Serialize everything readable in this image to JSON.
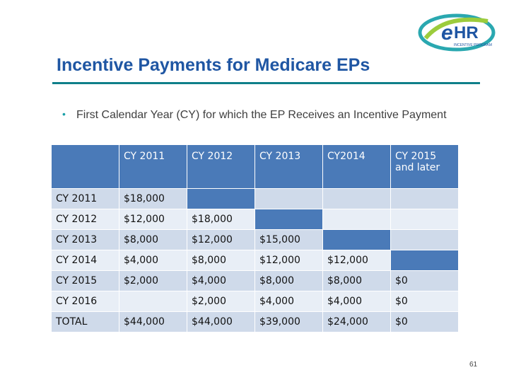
{
  "logo": {
    "text": "eHR",
    "subtext": "INCENTIVE PROGRAM"
  },
  "title": "Incentive Payments for Medicare EPs",
  "bullet": "First Calendar Year (CY) for which the EP Receives an Incentive Payment",
  "table": {
    "headers": [
      "",
      "CY 2011",
      "CY 2012",
      "CY 2013",
      "CY2014",
      "CY 2015 and later"
    ],
    "rows": [
      {
        "label": "CY 2011",
        "cells": [
          "$18,000",
          "",
          "",
          "",
          ""
        ]
      },
      {
        "label": "CY 2012",
        "cells": [
          "$12,000",
          "$18,000",
          "",
          "",
          ""
        ]
      },
      {
        "label": "CY 2013",
        "cells": [
          "$8,000",
          "$12,000",
          "$15,000",
          "",
          ""
        ]
      },
      {
        "label": "CY 2014",
        "cells": [
          "$4,000",
          "$8,000",
          "$12,000",
          "$12,000",
          ""
        ]
      },
      {
        "label": "CY 2015",
        "cells": [
          "$2,000",
          "$4,000",
          "$8,000",
          "$8,000",
          "$0"
        ]
      },
      {
        "label": "CY 2016",
        "cells": [
          "",
          "$2,000",
          "$4,000",
          "$4,000",
          "$0"
        ]
      },
      {
        "label": "TOTAL",
        "cells": [
          "$44,000",
          "$44,000",
          "$39,000",
          "$24,000",
          "$0"
        ]
      }
    ]
  },
  "page_number": "61",
  "colors": {
    "title": "#1f56a3",
    "header_fill": "#4a7ab8",
    "row_dark": "#cfdaea",
    "row_light": "#e8eef6",
    "rule": "#0f7f8a"
  }
}
